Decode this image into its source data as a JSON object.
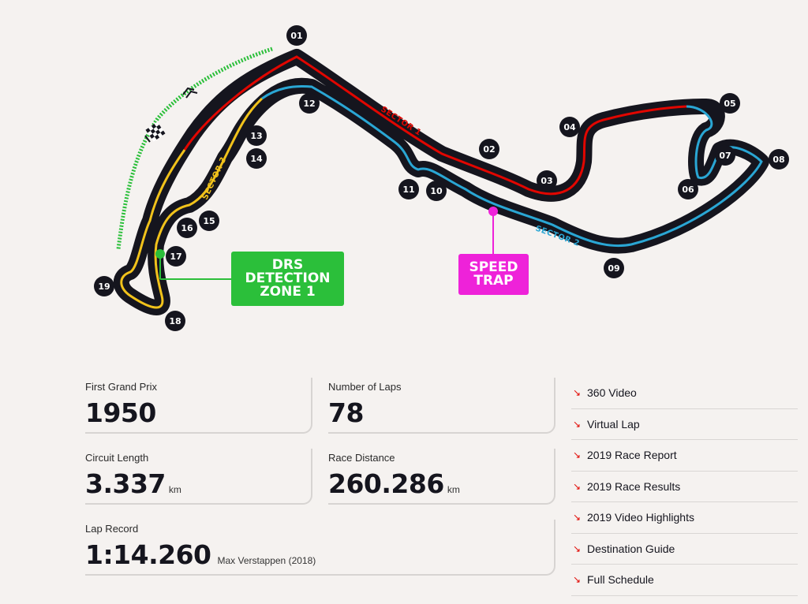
{
  "circuit": {
    "turns": [
      "01",
      "02",
      "03",
      "04",
      "05",
      "06",
      "07",
      "08",
      "09",
      "10",
      "11",
      "12",
      "13",
      "14",
      "15",
      "16",
      "17",
      "18",
      "19"
    ],
    "sectors": [
      "SECTOR 1",
      "SECTOR 2",
      "SECTOR 3"
    ],
    "drs_zone": [
      "DRS",
      "DETECTION",
      "ZONE 1"
    ],
    "speed_trap": [
      "SPEED",
      "TRAP"
    ],
    "colors": {
      "sector1": "#e10600",
      "sector2": "#2aa6d4",
      "sector3": "#f1c21b",
      "drs": "#2bbf3a",
      "speed_trap": "#ee22d9",
      "track": "#15151e"
    }
  },
  "stats": {
    "first_gp": {
      "label": "First Grand Prix",
      "value": "1950"
    },
    "laps": {
      "label": "Number of Laps",
      "value": "78"
    },
    "length": {
      "label": "Circuit Length",
      "value": "3.337",
      "unit": "km"
    },
    "distance": {
      "label": "Race Distance",
      "value": "260.286",
      "unit": "km"
    },
    "lap_record": {
      "label": "Lap Record",
      "value": "1:14.260",
      "holder": "Max Verstappen (2018)"
    }
  },
  "links": [
    "360 Video",
    "Virtual Lap",
    "2019 Race Report",
    "2019 Race Results",
    "2019 Video Highlights",
    "Destination Guide",
    "Full Schedule"
  ]
}
